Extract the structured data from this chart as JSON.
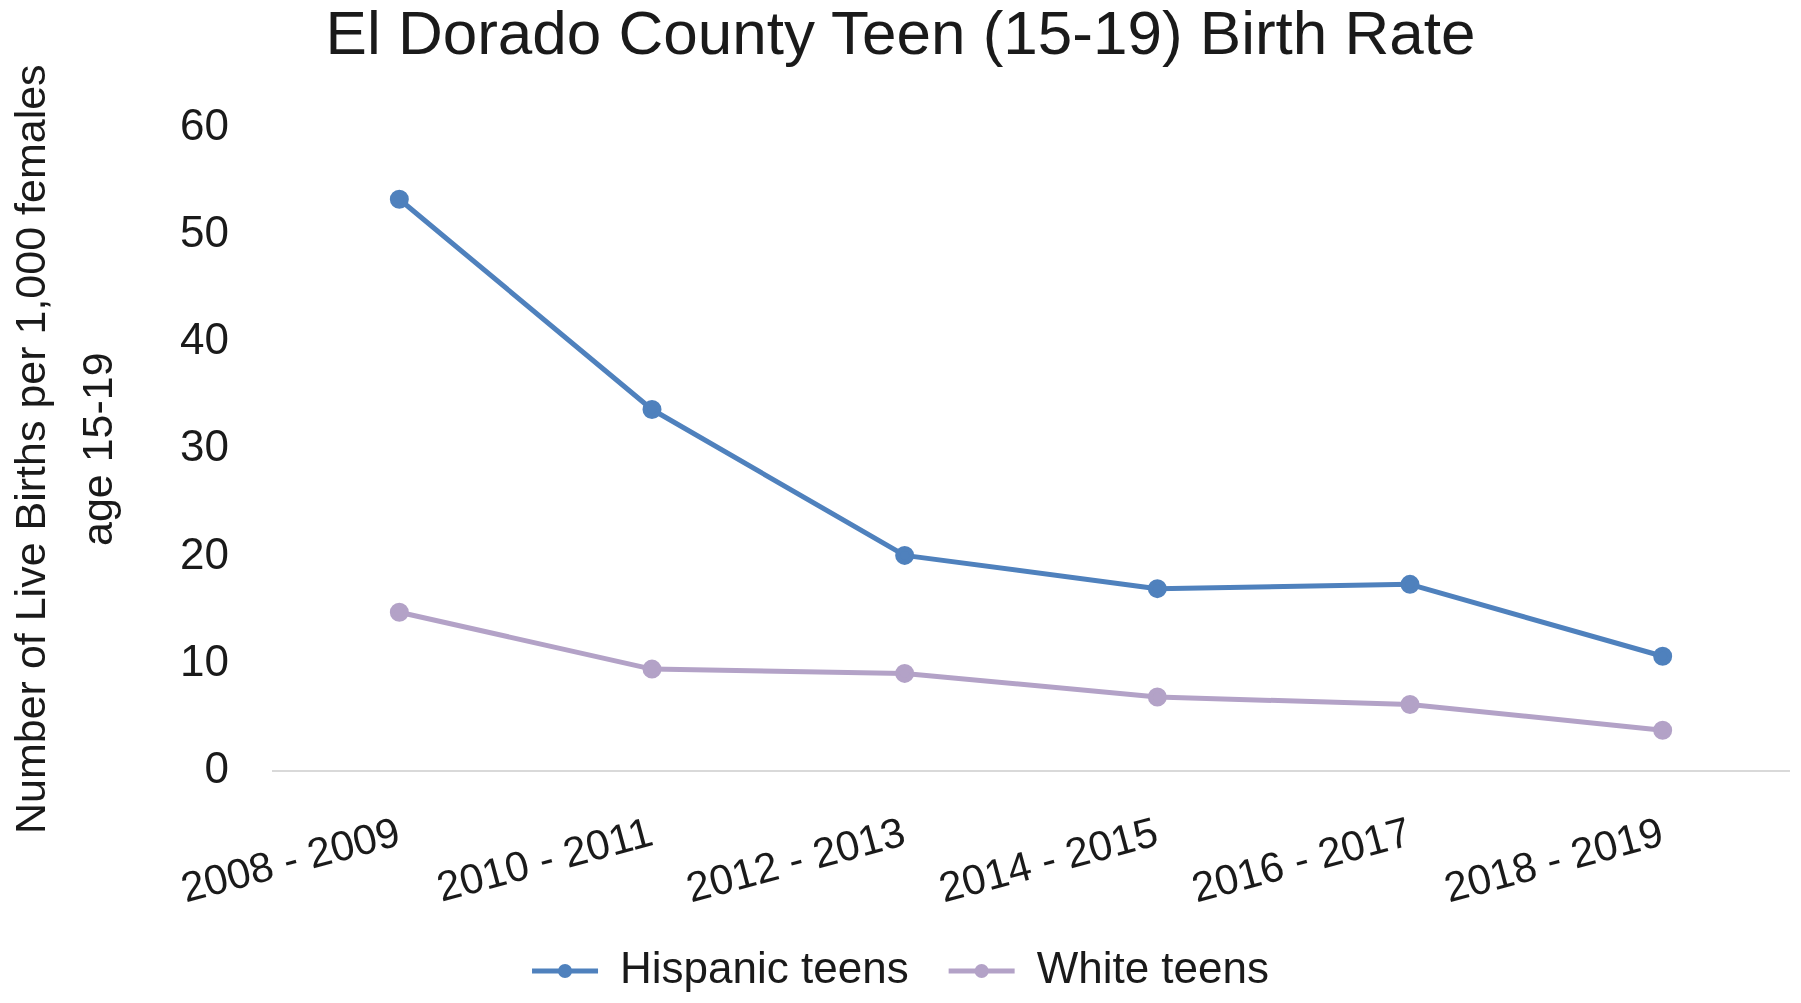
{
  "chart_data": {
    "type": "line",
    "title": "El Dorado County Teen (15-19) Birth Rate",
    "ylabel": "Number of Live Births per 1,000 females age 15-19",
    "categories": [
      "2008 - 2009",
      "2010 - 2011",
      "2012 - 2013",
      "2014 - 2015",
      "2016 - 2017",
      "2018 - 2019"
    ],
    "series": [
      {
        "name": "Hispanic teens",
        "color": "#4f81bd",
        "values": [
          53.3,
          33.7,
          20.1,
          17.0,
          17.4,
          10.7
        ]
      },
      {
        "name": "White teens",
        "color": "#b3a2c7",
        "values": [
          14.8,
          9.5,
          9.1,
          6.9,
          6.2,
          3.8
        ]
      }
    ],
    "ylim": [
      0,
      60
    ],
    "yticks": [
      0,
      10,
      20,
      30,
      40,
      50,
      60
    ],
    "grid": false,
    "legend": "bottom",
    "marker": "circle",
    "line_style": "solid"
  }
}
